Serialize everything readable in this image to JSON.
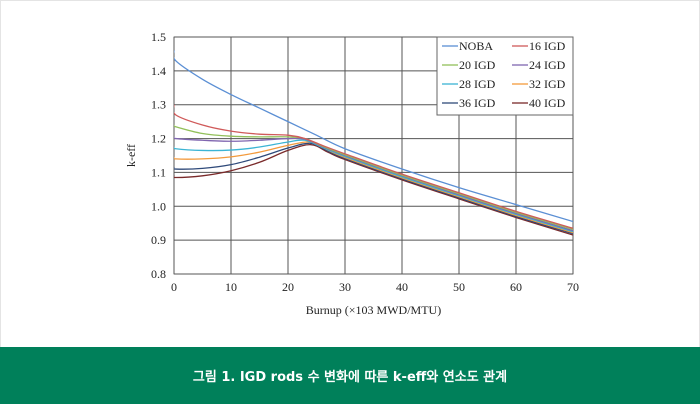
{
  "caption": "그림 1. IGD rods 수 변화에 따른 k-eff와 연소도 관계",
  "chart_data": {
    "type": "line",
    "title": "",
    "xlabel": "Burnup (×103 MWD/MTU)",
    "ylabel": "k-eff",
    "xlim": [
      0,
      70
    ],
    "ylim": [
      0.8,
      1.5
    ],
    "xticks": [
      0,
      10,
      20,
      30,
      40,
      50,
      60,
      70
    ],
    "yticks": [
      "0.8",
      "0.9",
      "1.0",
      "1.1",
      "1.2",
      "1.3",
      "1.4",
      "1.5"
    ],
    "grid": true,
    "legend_position": "top-right",
    "series": [
      {
        "name": "NOBA",
        "color": "#5b8fd4",
        "points": [
          [
            0,
            1.46
          ],
          [
            0.3,
            1.43
          ],
          [
            5,
            1.375
          ],
          [
            10,
            1.33
          ],
          [
            15,
            1.29
          ],
          [
            20,
            1.25
          ],
          [
            25,
            1.21
          ],
          [
            30,
            1.17
          ],
          [
            40,
            1.11
          ],
          [
            50,
            1.055
          ],
          [
            60,
            1.005
          ],
          [
            70,
            0.955
          ]
        ]
      },
      {
        "name": "16 IGD",
        "color": "#d05a5a",
        "points": [
          [
            0,
            1.3
          ],
          [
            0.3,
            1.27
          ],
          [
            5,
            1.24
          ],
          [
            10,
            1.222
          ],
          [
            15,
            1.213
          ],
          [
            20,
            1.21
          ],
          [
            23,
            1.2
          ],
          [
            26,
            1.18
          ],
          [
            30,
            1.155
          ],
          [
            40,
            1.095
          ],
          [
            50,
            1.04
          ],
          [
            60,
            0.985
          ],
          [
            70,
            0.935
          ]
        ]
      },
      {
        "name": "20 IGD",
        "color": "#92c05a",
        "points": [
          [
            0,
            1.24
          ],
          [
            0.3,
            1.235
          ],
          [
            5,
            1.215
          ],
          [
            10,
            1.207
          ],
          [
            15,
            1.205
          ],
          [
            20,
            1.205
          ],
          [
            23,
            1.2
          ],
          [
            26,
            1.178
          ],
          [
            30,
            1.152
          ],
          [
            40,
            1.092
          ],
          [
            50,
            1.037
          ],
          [
            60,
            0.982
          ],
          [
            70,
            0.932
          ]
        ]
      },
      {
        "name": "24 IGD",
        "color": "#8066b0",
        "points": [
          [
            0,
            1.205
          ],
          [
            0.3,
            1.2
          ],
          [
            5,
            1.195
          ],
          [
            10,
            1.192
          ],
          [
            15,
            1.195
          ],
          [
            20,
            1.2
          ],
          [
            23,
            1.198
          ],
          [
            26,
            1.176
          ],
          [
            30,
            1.15
          ],
          [
            40,
            1.09
          ],
          [
            50,
            1.034
          ],
          [
            60,
            0.979
          ],
          [
            70,
            0.928
          ]
        ]
      },
      {
        "name": "28 IGD",
        "color": "#3cb4d4",
        "points": [
          [
            0,
            1.175
          ],
          [
            0.3,
            1.17
          ],
          [
            5,
            1.165
          ],
          [
            10,
            1.166
          ],
          [
            15,
            1.175
          ],
          [
            20,
            1.19
          ],
          [
            23,
            1.195
          ],
          [
            26,
            1.174
          ],
          [
            30,
            1.147
          ],
          [
            40,
            1.087
          ],
          [
            50,
            1.031
          ],
          [
            60,
            0.976
          ],
          [
            70,
            0.925
          ]
        ]
      },
      {
        "name": "32 IGD",
        "color": "#f39a3c",
        "points": [
          [
            0,
            1.145
          ],
          [
            0.3,
            1.14
          ],
          [
            5,
            1.14
          ],
          [
            10,
            1.146
          ],
          [
            15,
            1.16
          ],
          [
            20,
            1.18
          ],
          [
            24,
            1.19
          ],
          [
            27,
            1.166
          ],
          [
            30,
            1.144
          ],
          [
            40,
            1.084
          ],
          [
            50,
            1.028
          ],
          [
            60,
            0.973
          ],
          [
            70,
            0.922
          ]
        ]
      },
      {
        "name": "36 IGD",
        "color": "#2f4a7a",
        "points": [
          [
            0,
            1.115
          ],
          [
            0.3,
            1.11
          ],
          [
            5,
            1.112
          ],
          [
            10,
            1.123
          ],
          [
            15,
            1.145
          ],
          [
            20,
            1.172
          ],
          [
            24,
            1.186
          ],
          [
            27,
            1.163
          ],
          [
            30,
            1.141
          ],
          [
            40,
            1.081
          ],
          [
            50,
            1.025
          ],
          [
            60,
            0.97
          ],
          [
            70,
            0.919
          ]
        ]
      },
      {
        "name": "40 IGD",
        "color": "#7a2a2a",
        "points": [
          [
            0,
            1.09
          ],
          [
            0.3,
            1.085
          ],
          [
            5,
            1.09
          ],
          [
            10,
            1.105
          ],
          [
            15,
            1.13
          ],
          [
            20,
            1.165
          ],
          [
            24,
            1.182
          ],
          [
            27,
            1.16
          ],
          [
            30,
            1.138
          ],
          [
            40,
            1.078
          ],
          [
            50,
            1.022
          ],
          [
            60,
            0.967
          ],
          [
            70,
            0.915
          ]
        ]
      }
    ]
  }
}
